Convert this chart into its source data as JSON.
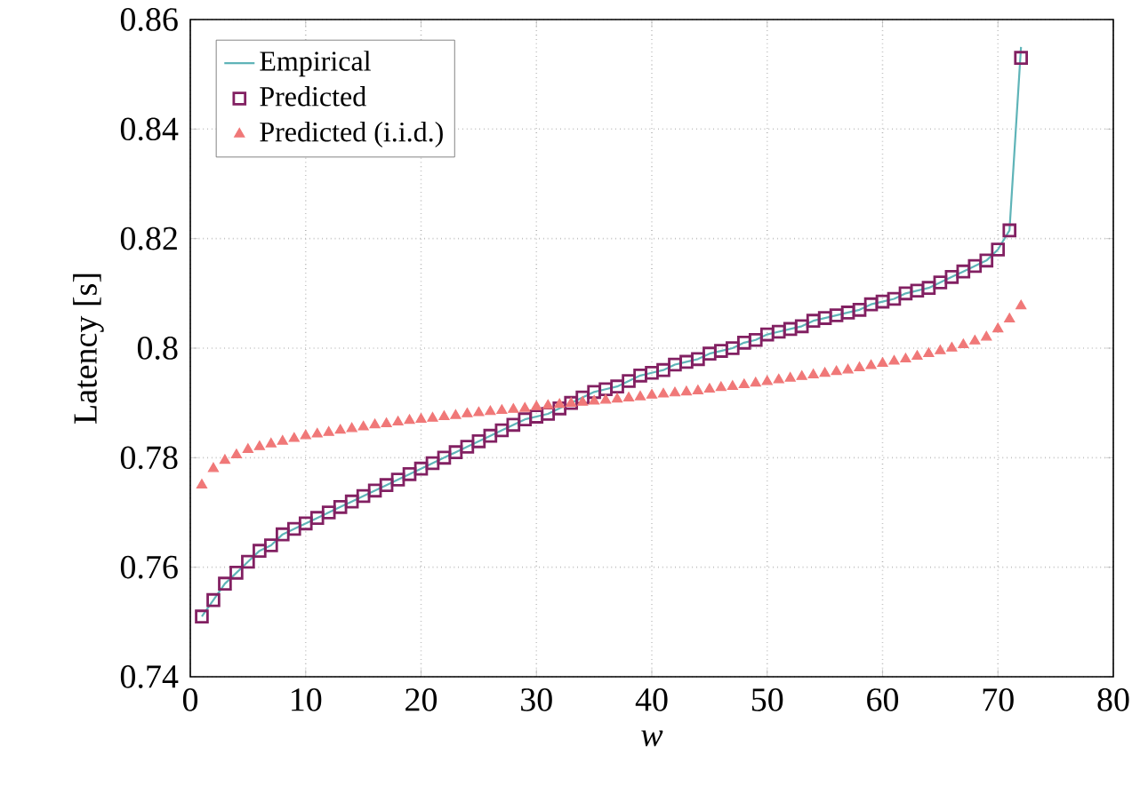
{
  "chart_data": {
    "type": "scatter",
    "xlabel": "w",
    "ylabel": "Latency [s]",
    "xlim": [
      0,
      80
    ],
    "ylim": [
      0.74,
      0.86
    ],
    "xticks": [
      0,
      10,
      20,
      30,
      40,
      50,
      60,
      70,
      80
    ],
    "yticks": [
      0.74,
      0.76,
      0.78,
      0.8,
      0.82,
      0.84,
      0.86
    ],
    "grid": true,
    "legend": "top left",
    "x": [
      1,
      2,
      3,
      4,
      5,
      6,
      7,
      8,
      9,
      10,
      11,
      12,
      13,
      14,
      15,
      16,
      17,
      18,
      19,
      20,
      21,
      22,
      23,
      24,
      25,
      26,
      27,
      28,
      29,
      30,
      31,
      32,
      33,
      34,
      35,
      36,
      37,
      38,
      39,
      40,
      41,
      42,
      43,
      44,
      45,
      46,
      47,
      48,
      49,
      50,
      51,
      52,
      53,
      54,
      55,
      56,
      57,
      58,
      59,
      60,
      61,
      62,
      63,
      64,
      65,
      66,
      67,
      68,
      69,
      70,
      71,
      72
    ],
    "series": [
      {
        "name": "Empirical",
        "type": "line",
        "marker": "none",
        "color": "#5fb4b8",
        "values": [
          0.751,
          0.754,
          0.757,
          0.759,
          0.761,
          0.763,
          0.764,
          0.766,
          0.767,
          0.768,
          0.769,
          0.77,
          0.771,
          0.772,
          0.773,
          0.774,
          0.775,
          0.776,
          0.777,
          0.778,
          0.779,
          0.78,
          0.781,
          0.782,
          0.783,
          0.784,
          0.785,
          0.786,
          0.787,
          0.7875,
          0.788,
          0.789,
          0.79,
          0.791,
          0.792,
          0.7925,
          0.793,
          0.794,
          0.795,
          0.7955,
          0.796,
          0.797,
          0.7975,
          0.798,
          0.799,
          0.7995,
          0.8,
          0.801,
          0.8015,
          0.8025,
          0.803,
          0.8035,
          0.804,
          0.805,
          0.8055,
          0.806,
          0.8065,
          0.807,
          0.808,
          0.8085,
          0.809,
          0.81,
          0.8105,
          0.811,
          0.812,
          0.813,
          0.814,
          0.815,
          0.816,
          0.818,
          0.8215,
          0.855
        ]
      },
      {
        "name": "Predicted",
        "marker": "square",
        "color": "#822062",
        "values": [
          0.751,
          0.754,
          0.757,
          0.759,
          0.761,
          0.763,
          0.764,
          0.766,
          0.767,
          0.768,
          0.769,
          0.77,
          0.771,
          0.772,
          0.773,
          0.774,
          0.775,
          0.776,
          0.777,
          0.778,
          0.779,
          0.78,
          0.781,
          0.782,
          0.783,
          0.784,
          0.785,
          0.786,
          0.787,
          0.7875,
          0.788,
          0.789,
          0.79,
          0.791,
          0.792,
          0.7925,
          0.793,
          0.794,
          0.795,
          0.7955,
          0.796,
          0.797,
          0.7975,
          0.798,
          0.799,
          0.7995,
          0.8,
          0.801,
          0.8015,
          0.8025,
          0.803,
          0.8035,
          0.804,
          0.805,
          0.8055,
          0.806,
          0.8065,
          0.807,
          0.808,
          0.8085,
          0.809,
          0.81,
          0.8105,
          0.811,
          0.812,
          0.813,
          0.814,
          0.815,
          0.816,
          0.818,
          0.8215,
          0.853
        ]
      },
      {
        "name": "Predicted (i.i.d.)",
        "marker": "triangle",
        "color": "#f07878",
        "values": [
          0.775,
          0.778,
          0.7795,
          0.7805,
          0.7815,
          0.782,
          0.7825,
          0.783,
          0.7835,
          0.784,
          0.7843,
          0.7846,
          0.785,
          0.7853,
          0.7856,
          0.786,
          0.7862,
          0.7865,
          0.7868,
          0.787,
          0.7872,
          0.7875,
          0.7877,
          0.788,
          0.7882,
          0.7884,
          0.7886,
          0.7888,
          0.789,
          0.7893,
          0.7895,
          0.7897,
          0.7899,
          0.7901,
          0.7903,
          0.7905,
          0.7907,
          0.7909,
          0.7911,
          0.7914,
          0.7916,
          0.7918,
          0.792,
          0.7922,
          0.7925,
          0.7928,
          0.793,
          0.7933,
          0.7936,
          0.7939,
          0.7942,
          0.7945,
          0.7948,
          0.7951,
          0.7954,
          0.7957,
          0.796,
          0.7964,
          0.7968,
          0.7972,
          0.7976,
          0.798,
          0.7985,
          0.799,
          0.7995,
          0.8,
          0.8006,
          0.8013,
          0.802,
          0.8035,
          0.8053,
          0.8077
        ]
      }
    ]
  }
}
